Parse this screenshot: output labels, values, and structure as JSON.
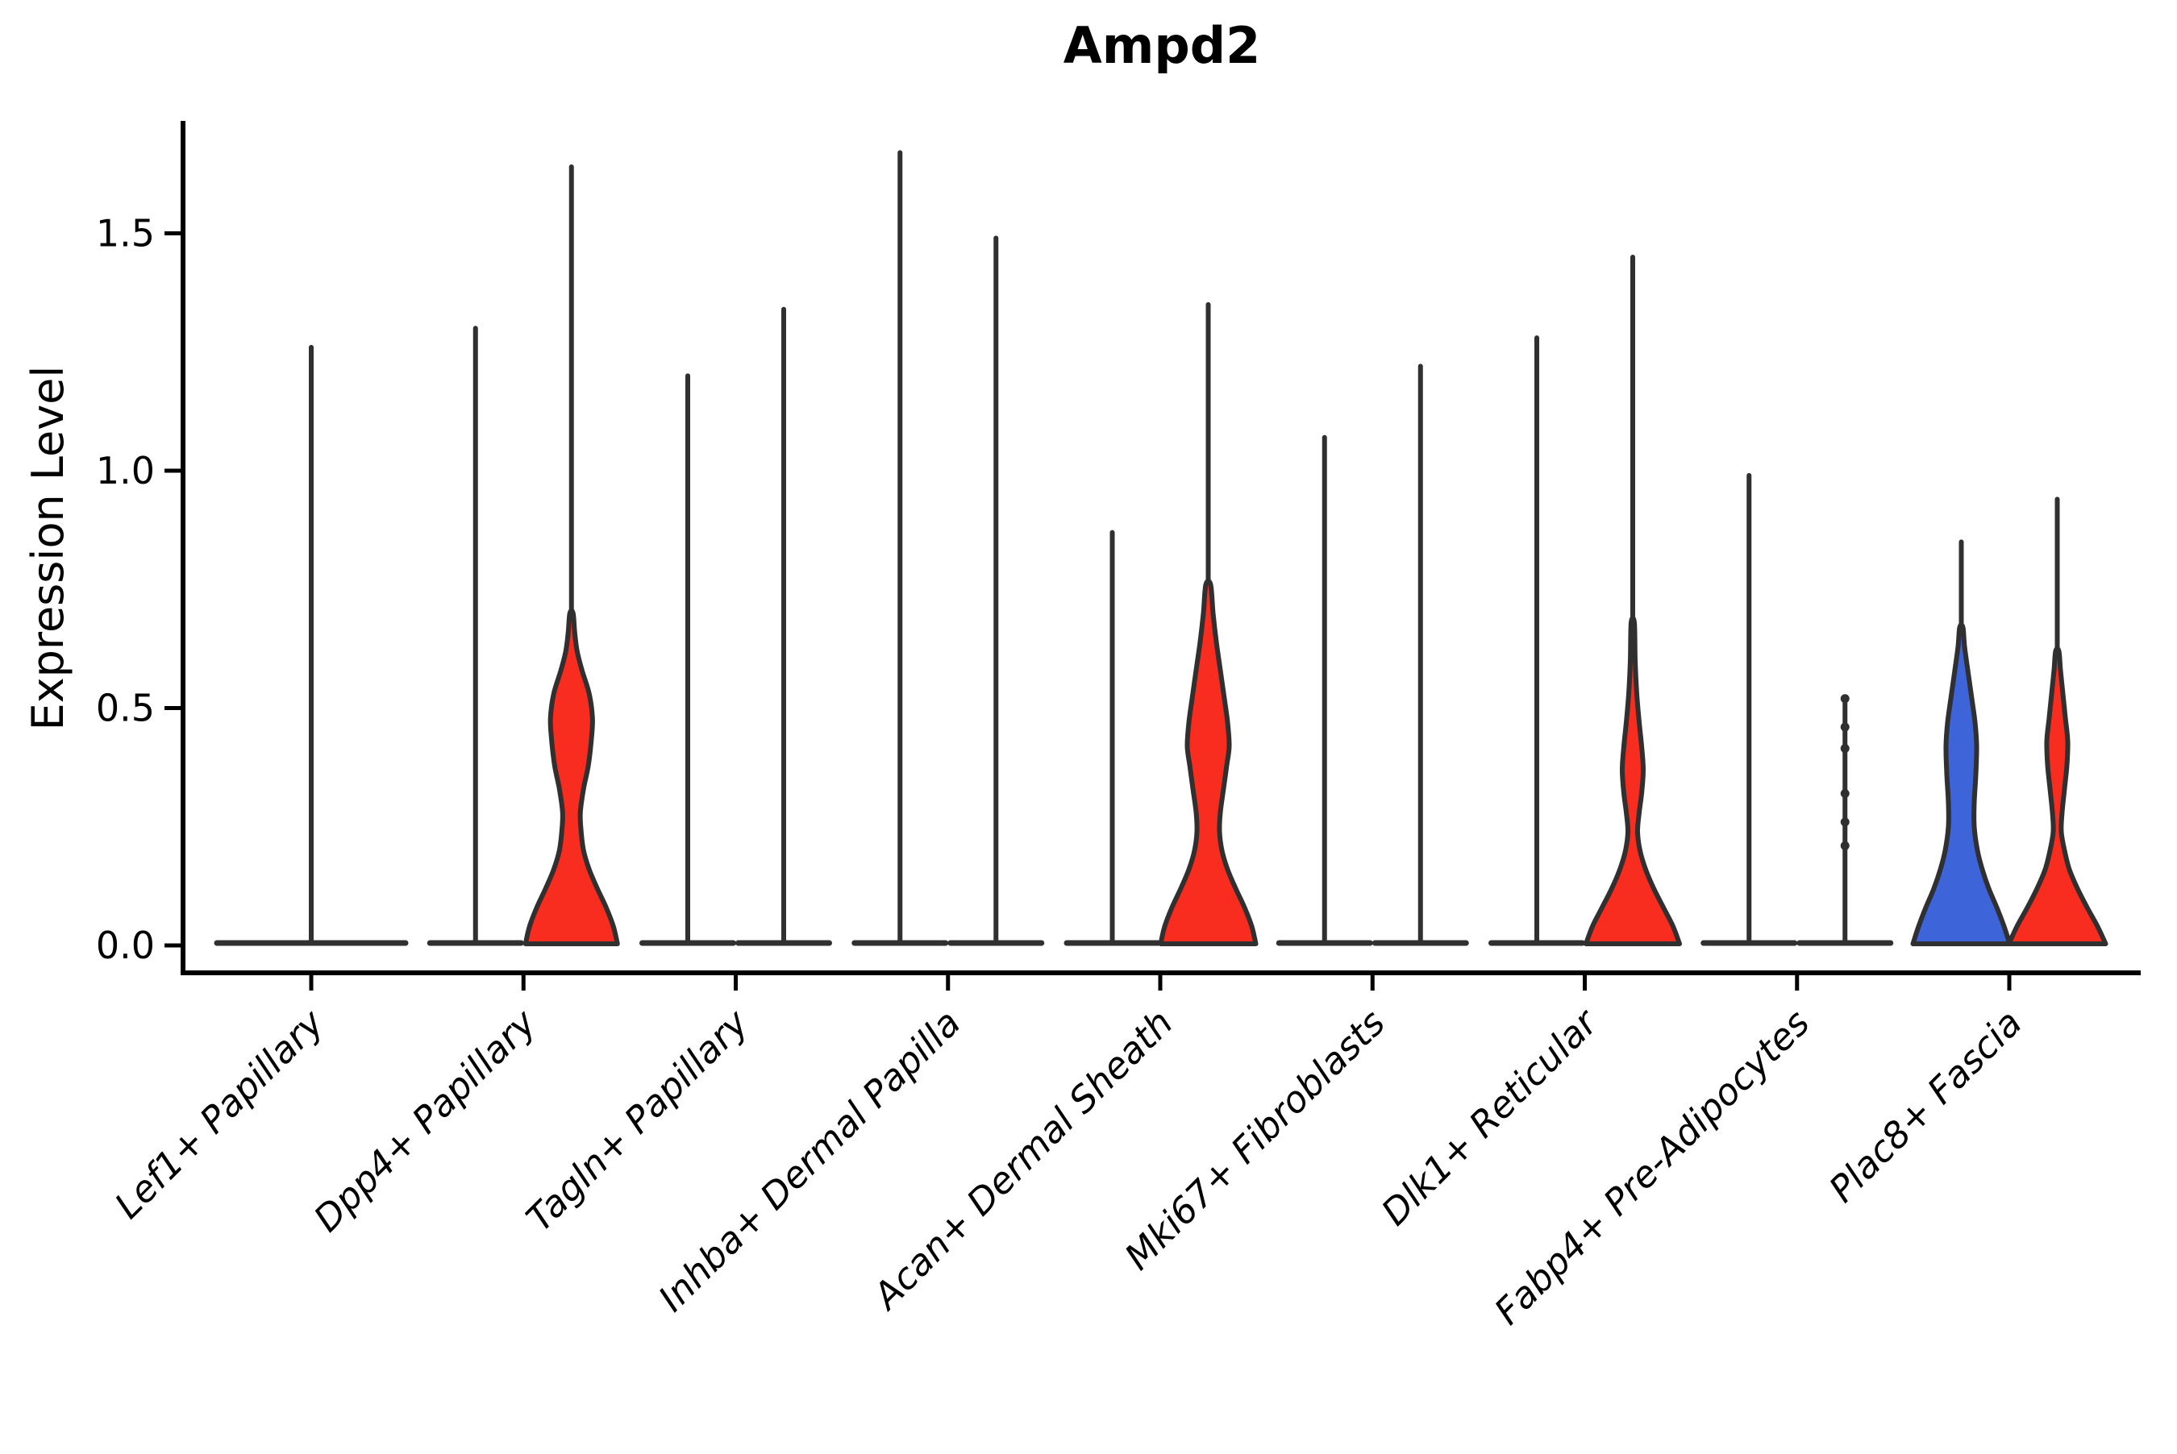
{
  "page": {
    "background": "#ffffff"
  },
  "chart_data": {
    "type": "violin",
    "title": "Ampd2",
    "ylabel": "Expression Level",
    "xlabel": "",
    "ylim": [
      0,
      1.73
    ],
    "grid": false,
    "legend": "none",
    "yticks": [
      {
        "label": "0.0",
        "value": 0.0
      },
      {
        "label": "0.5",
        "value": 0.5
      },
      {
        "label": "1.0",
        "value": 1.0
      },
      {
        "label": "1.5",
        "value": 1.5
      }
    ],
    "colors": {
      "group_left_fill": "#3d64d8",
      "group_right_fill": "#f82c1f",
      "violin_outline": "#303030",
      "axis": "#000000"
    },
    "categories": [
      "Lef1+ Papillary",
      "Dpp4+ Papillary",
      "Tagln+ Papillary",
      "Inhba+ Dermal Papilla",
      "Acan+ Dermal Sheath",
      "Mki67+ Fibroblasts",
      "Dlk1+ Reticular",
      "Fabp4+ Pre-Adipocytes",
      "Plac8+ Fascia"
    ],
    "violins": [
      {
        "category": "Lef1+ Papillary",
        "items": [
          {
            "side": "center",
            "type": "flat",
            "max": 1.26,
            "baseline_halfwidth": 117
          }
        ]
      },
      {
        "category": "Dpp4+ Papillary",
        "items": [
          {
            "side": "left",
            "type": "flat",
            "max": 1.3
          },
          {
            "side": "right",
            "type": "filled",
            "color": "#f82c1f",
            "max": 1.64,
            "profile": [
              [
                0,
                57
              ],
              [
                0.04,
                52
              ],
              [
                0.08,
                43
              ],
              [
                0.12,
                32
              ],
              [
                0.16,
                22
              ],
              [
                0.2,
                15
              ],
              [
                0.24,
                12
              ],
              [
                0.28,
                11
              ],
              [
                0.33,
                15
              ],
              [
                0.38,
                21
              ],
              [
                0.44,
                25
              ],
              [
                0.48,
                26
              ],
              [
                0.53,
                22
              ],
              [
                0.58,
                13
              ],
              [
                0.62,
                7
              ],
              [
                0.66,
                4
              ],
              [
                0.7,
                2
              ]
            ]
          }
        ]
      },
      {
        "category": "Tagln+ Papillary",
        "items": [
          {
            "side": "left",
            "type": "flat",
            "max": 1.2
          },
          {
            "side": "right",
            "type": "flat",
            "max": 1.34
          }
        ]
      },
      {
        "category": "Inhba+ Dermal Papilla",
        "items": [
          {
            "side": "left",
            "type": "flat",
            "max": 1.67
          },
          {
            "side": "right",
            "type": "flat",
            "max": 1.49
          }
        ]
      },
      {
        "category": "Acan+ Dermal Sheath",
        "items": [
          {
            "side": "left",
            "type": "flat",
            "max": 0.87
          },
          {
            "side": "right",
            "type": "filled",
            "color": "#f82c1f",
            "max": 1.35,
            "profile": [
              [
                0,
                59
              ],
              [
                0.04,
                54
              ],
              [
                0.08,
                45
              ],
              [
                0.12,
                34
              ],
              [
                0.16,
                24
              ],
              [
                0.2,
                17
              ],
              [
                0.24,
                14
              ],
              [
                0.28,
                15
              ],
              [
                0.33,
                19
              ],
              [
                0.38,
                23
              ],
              [
                0.42,
                26
              ],
              [
                0.47,
                24
              ],
              [
                0.52,
                20
              ],
              [
                0.58,
                15
              ],
              [
                0.64,
                10
              ],
              [
                0.7,
                6
              ],
              [
                0.76,
                3
              ]
            ]
          }
        ]
      },
      {
        "category": "Mki67+ Fibroblasts",
        "items": [
          {
            "side": "left",
            "type": "flat",
            "max": 1.07
          },
          {
            "side": "right",
            "type": "flat",
            "max": 1.22
          }
        ]
      },
      {
        "category": "Dlk1+ Reticular",
        "items": [
          {
            "side": "left",
            "type": "flat",
            "max": 1.28
          },
          {
            "side": "right",
            "type": "filled",
            "color": "#f82c1f",
            "max": 1.45,
            "profile": [
              [
                0,
                58
              ],
              [
                0.04,
                50
              ],
              [
                0.08,
                38
              ],
              [
                0.12,
                26
              ],
              [
                0.16,
                16
              ],
              [
                0.2,
                9
              ],
              [
                0.24,
                6
              ],
              [
                0.28,
                8
              ],
              [
                0.32,
                11
              ],
              [
                0.37,
                13
              ],
              [
                0.42,
                11
              ],
              [
                0.47,
                8
              ],
              [
                0.53,
                5
              ],
              [
                0.6,
                3
              ],
              [
                0.68,
                2
              ]
            ]
          }
        ]
      },
      {
        "category": "Fabp4+ Pre-Adipocytes",
        "items": [
          {
            "side": "left",
            "type": "flat",
            "max": 0.99
          },
          {
            "side": "right",
            "type": "flat",
            "max": 0.52,
            "dots": [
              0.52,
              0.46,
              0.415,
              0.32,
              0.26,
              0.21
            ]
          }
        ]
      },
      {
        "category": "Plac8+ Fascia",
        "items": [
          {
            "side": "left",
            "type": "filled",
            "color": "#3d64d8",
            "max": 0.85,
            "profile": [
              [
                0,
                60
              ],
              [
                0.04,
                53
              ],
              [
                0.08,
                44
              ],
              [
                0.12,
                34
              ],
              [
                0.16,
                26
              ],
              [
                0.2,
                20
              ],
              [
                0.25,
                16
              ],
              [
                0.3,
                16
              ],
              [
                0.36,
                18
              ],
              [
                0.42,
                19
              ],
              [
                0.47,
                17
              ],
              [
                0.52,
                13
              ],
              [
                0.58,
                8
              ],
              [
                0.63,
                4
              ],
              [
                0.67,
                2
              ]
            ]
          },
          {
            "side": "right",
            "type": "filled",
            "color": "#f82c1f",
            "max": 0.94,
            "profile": [
              [
                0,
                60
              ],
              [
                0.04,
                50
              ],
              [
                0.08,
                37
              ],
              [
                0.12,
                25
              ],
              [
                0.16,
                15
              ],
              [
                0.2,
                9
              ],
              [
                0.24,
                5
              ],
              [
                0.28,
                6
              ],
              [
                0.33,
                9
              ],
              [
                0.38,
                12
              ],
              [
                0.43,
                13
              ],
              [
                0.48,
                10
              ],
              [
                0.53,
                7
              ],
              [
                0.58,
                4
              ],
              [
                0.62,
                2
              ]
            ]
          }
        ]
      }
    ]
  }
}
